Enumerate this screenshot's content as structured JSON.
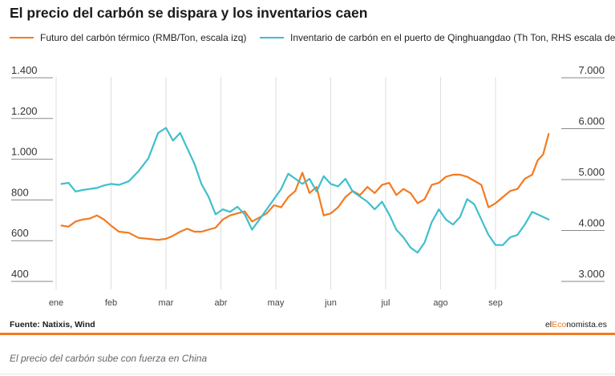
{
  "title": "El precio del carbón se dispara y los inventarios caen",
  "source": "Fuente: Natixis, Wind",
  "brand": {
    "part1": "el",
    "part2": "Eco",
    "part3": "nomista.es"
  },
  "caption": "El precio del carbón sube con fuerza en China",
  "colors": {
    "coal_price": "#f47a20",
    "inventory": "#3fbfcc",
    "accent": "#f47a20",
    "grid": "#dddddd",
    "axis_line": "#888888"
  },
  "chart_data": {
    "type": "line",
    "title": "El precio del carbón se dispara y los inventarios caen",
    "x_ticks": [
      "ene",
      "feb",
      "mar",
      "abr",
      "may",
      "jun",
      "jul",
      "ago",
      "sep"
    ],
    "y_left_ticks": [
      "1.400",
      "1.200",
      "1.000",
      "800",
      "600",
      "400"
    ],
    "y_left_range": [
      400,
      1400
    ],
    "y_right_ticks": [
      "7.000",
      "6.000",
      "5.000",
      "4.000",
      "3.000"
    ],
    "y_right_range": [
      3000,
      7000
    ],
    "grid": "vertical",
    "legend_placement": "top",
    "series": [
      {
        "name": "Futuro del carbón térmico (RMB/Ton, escala izq)",
        "axis": "left",
        "x": [
          "2021-01-04",
          "2021-01-08",
          "2021-01-12",
          "2021-01-16",
          "2021-01-20",
          "2021-01-24",
          "2021-01-28",
          "2021-02-01",
          "2021-02-05",
          "2021-02-10",
          "2021-02-15",
          "2021-02-20",
          "2021-02-25",
          "2021-03-01",
          "2021-03-05",
          "2021-03-09",
          "2021-03-13",
          "2021-03-17",
          "2021-03-21",
          "2021-03-25",
          "2021-03-29",
          "2021-04-02",
          "2021-04-06",
          "2021-04-10",
          "2021-04-14",
          "2021-04-18",
          "2021-04-22",
          "2021-04-26",
          "2021-04-30",
          "2021-05-04",
          "2021-05-08",
          "2021-05-12",
          "2021-05-16",
          "2021-05-20",
          "2021-05-24",
          "2021-05-28",
          "2021-06-01",
          "2021-06-05",
          "2021-06-09",
          "2021-06-13",
          "2021-06-17",
          "2021-06-21",
          "2021-06-25",
          "2021-06-29",
          "2021-07-03",
          "2021-07-07",
          "2021-07-11",
          "2021-07-15",
          "2021-07-19",
          "2021-07-23",
          "2021-07-27",
          "2021-07-31",
          "2021-08-04",
          "2021-08-08",
          "2021-08-12",
          "2021-08-16",
          "2021-08-20",
          "2021-08-24",
          "2021-08-28",
          "2021-09-01",
          "2021-09-05",
          "2021-09-09",
          "2021-09-13",
          "2021-09-17",
          "2021-09-21",
          "2021-09-24",
          "2021-09-27",
          "2021-09-30"
        ],
        "y": [
          670,
          665,
          690,
          700,
          705,
          720,
          700,
          670,
          640,
          635,
          610,
          605,
          600,
          605,
          620,
          640,
          655,
          640,
          640,
          650,
          660,
          700,
          720,
          730,
          740,
          690,
          710,
          730,
          770,
          760,
          810,
          840,
          930,
          830,
          860,
          720,
          730,
          760,
          810,
          840,
          820,
          860,
          830,
          870,
          880,
          820,
          850,
          830,
          780,
          800,
          870,
          880,
          910,
          920,
          920,
          910,
          890,
          870,
          760,
          780,
          810,
          840,
          850,
          900,
          920,
          990,
          1020,
          1120
        ]
      },
      {
        "name": "Inventario de carbón en el puerto de Qinghuangdao (Th Ton, RHS escala der.)",
        "axis": "right",
        "x": [
          "2021-01-04",
          "2021-01-08",
          "2021-01-12",
          "2021-01-16",
          "2021-01-20",
          "2021-01-24",
          "2021-01-28",
          "2021-02-01",
          "2021-02-05",
          "2021-02-10",
          "2021-02-15",
          "2021-02-20",
          "2021-02-25",
          "2021-03-01",
          "2021-03-05",
          "2021-03-09",
          "2021-03-13",
          "2021-03-17",
          "2021-03-21",
          "2021-03-25",
          "2021-03-29",
          "2021-04-02",
          "2021-04-06",
          "2021-04-10",
          "2021-04-14",
          "2021-04-18",
          "2021-04-22",
          "2021-04-26",
          "2021-04-30",
          "2021-05-04",
          "2021-05-08",
          "2021-05-12",
          "2021-05-16",
          "2021-05-20",
          "2021-05-24",
          "2021-05-28",
          "2021-06-01",
          "2021-06-05",
          "2021-06-09",
          "2021-06-13",
          "2021-06-17",
          "2021-06-21",
          "2021-06-25",
          "2021-06-29",
          "2021-07-03",
          "2021-07-07",
          "2021-07-11",
          "2021-07-15",
          "2021-07-19",
          "2021-07-23",
          "2021-07-27",
          "2021-07-31",
          "2021-08-04",
          "2021-08-08",
          "2021-08-12",
          "2021-08-16",
          "2021-08-20",
          "2021-08-24",
          "2021-08-28",
          "2021-09-01",
          "2021-09-05",
          "2021-09-09",
          "2021-09-13",
          "2021-09-17",
          "2021-09-21",
          "2021-09-24",
          "2021-09-27",
          "2021-09-30"
        ],
        "y": [
          4900,
          4920,
          4750,
          4780,
          4800,
          4820,
          4870,
          4900,
          4880,
          4950,
          5150,
          5400,
          5900,
          6000,
          5750,
          5900,
          5600,
          5300,
          4900,
          4650,
          4300,
          4400,
          4350,
          4450,
          4300,
          4000,
          4200,
          4400,
          4600,
          4800,
          5100,
          5000,
          4900,
          5000,
          4750,
          5050,
          4900,
          4850,
          5000,
          4750,
          4650,
          4550,
          4400,
          4550,
          4300,
          4000,
          3850,
          3650,
          3550,
          3750,
          4150,
          4400,
          4200,
          4100,
          4250,
          4600,
          4500,
          4200,
          3900,
          3700,
          3700,
          3850,
          3900,
          4100,
          4350,
          4300,
          4250,
          4200
        ]
      }
    ]
  }
}
